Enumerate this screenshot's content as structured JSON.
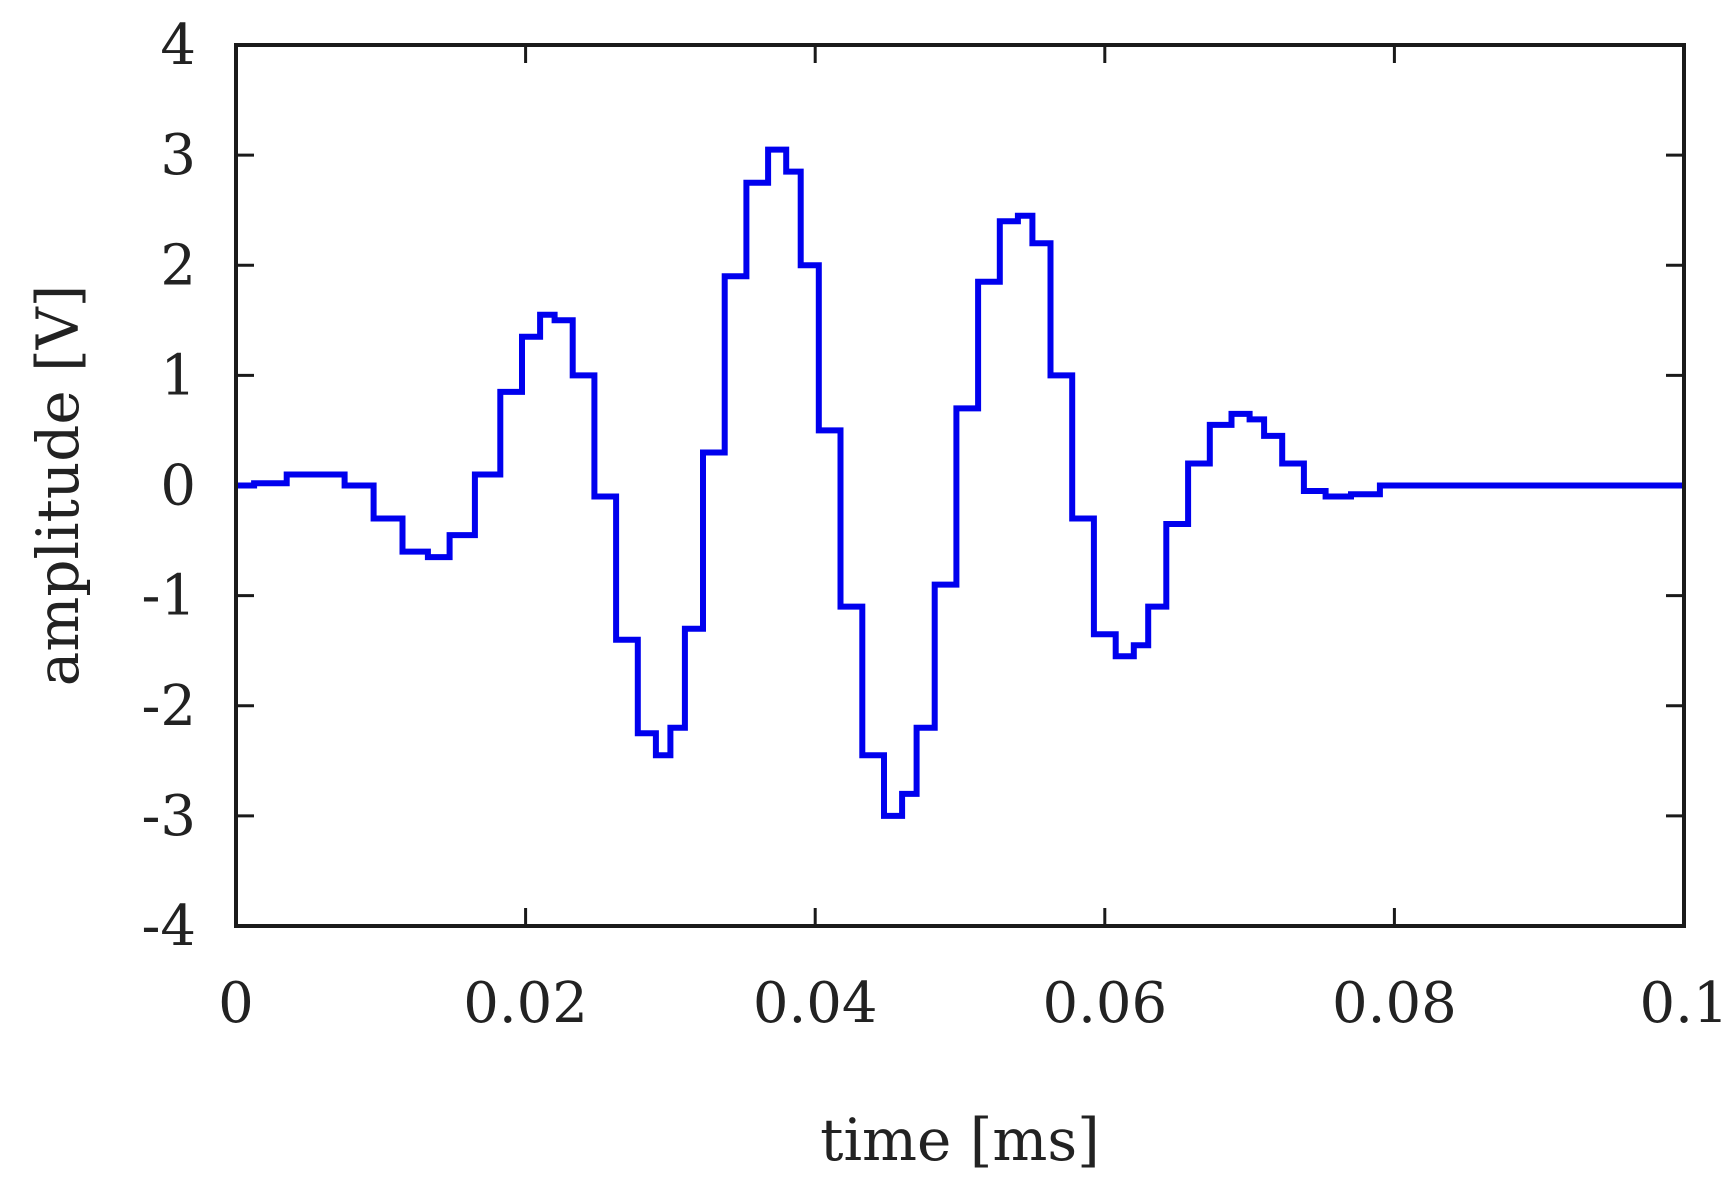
{
  "chart_data": {
    "type": "line",
    "title": "",
    "xlabel": "time [ms]",
    "ylabel": "amplitude [V]",
    "xlim": [
      0,
      0.1
    ],
    "ylim": [
      -4,
      4
    ],
    "grid": false,
    "legend": "none",
    "x_ticks": [
      0,
      0.02,
      0.04,
      0.06,
      0.08,
      0.1
    ],
    "x_tick_labels": [
      "0",
      "0.02",
      "0.04",
      "0.06",
      "0.08",
      "0.1"
    ],
    "y_ticks": [
      4,
      3,
      2,
      1,
      0,
      -1,
      -2,
      -3,
      -4
    ],
    "y_tick_labels": [
      "4",
      "3",
      "2",
      "1",
      "0",
      "-1",
      "-2",
      "-3",
      "-4"
    ],
    "series": [
      {
        "color": "#0000ee",
        "x": [
          0,
          0.0025,
          0.0045,
          0.0065,
          0.0085,
          0.0105,
          0.0125,
          0.014,
          0.0155,
          0.0175,
          0.019,
          0.0205,
          0.0215,
          0.0225,
          0.024,
          0.0255,
          0.027,
          0.0285,
          0.0295,
          0.0305,
          0.0315,
          0.033,
          0.0345,
          0.036,
          0.0375,
          0.0385,
          0.0395,
          0.041,
          0.0425,
          0.044,
          0.0455,
          0.0465,
          0.0475,
          0.049,
          0.0505,
          0.052,
          0.0535,
          0.0545,
          0.0555,
          0.057,
          0.0585,
          0.06,
          0.0615,
          0.0625,
          0.0635,
          0.065,
          0.0665,
          0.068,
          0.0695,
          0.0705,
          0.0715,
          0.073,
          0.0745,
          0.076,
          0.078,
          0.08,
          0.085,
          0.09,
          0.095,
          0.1
        ],
        "y": [
          0,
          0.02,
          0.1,
          0.1,
          0.0,
          -0.3,
          -0.6,
          -0.65,
          -0.45,
          0.1,
          0.85,
          1.35,
          1.55,
          1.5,
          1.0,
          -0.1,
          -1.4,
          -2.25,
          -2.45,
          -2.2,
          -1.3,
          0.3,
          1.9,
          2.75,
          3.05,
          2.85,
          2.0,
          0.5,
          -1.1,
          -2.45,
          -3.0,
          -2.8,
          -2.2,
          -0.9,
          0.7,
          1.85,
          2.4,
          2.45,
          2.2,
          1.0,
          -0.3,
          -1.35,
          -1.55,
          -1.45,
          -1.1,
          -0.35,
          0.2,
          0.55,
          0.65,
          0.6,
          0.45,
          0.2,
          -0.05,
          -0.1,
          -0.08,
          0,
          0,
          0,
          0,
          0
        ]
      }
    ]
  }
}
